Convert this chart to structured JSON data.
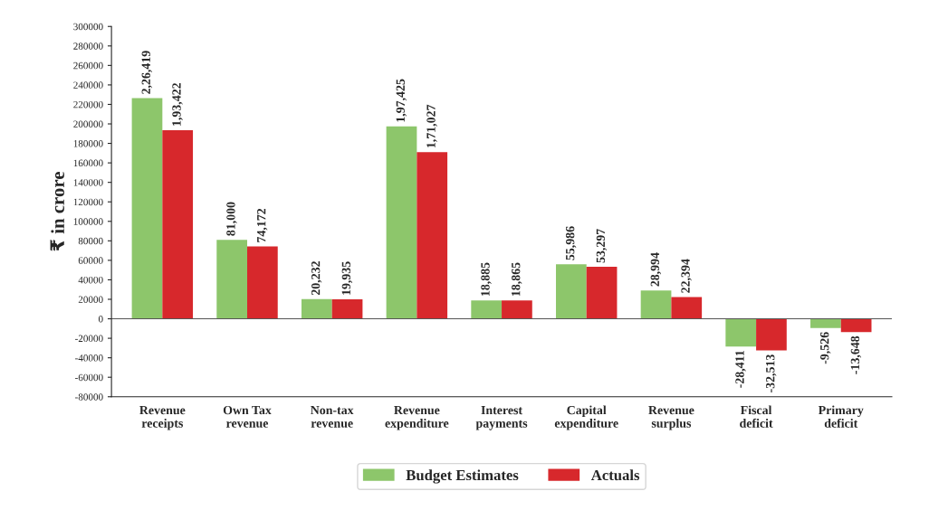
{
  "chart_data": {
    "type": "bar",
    "ylabel": "₹ in crore",
    "categories": [
      "Revenue\nreceipts",
      "Own Tax\nrevenue",
      "Non-tax\nrevenue",
      "Revenue\nexpenditure",
      "Interest\npayments",
      "Capital\nexpenditure",
      "Revenue\nsurplus",
      "Fiscal\ndeficit",
      "Primary\ndeficit"
    ],
    "series": [
      {
        "name": "Budget Estimates",
        "color": "#8dc66b",
        "values": [
          226419,
          81000,
          20232,
          197425,
          18885,
          55986,
          28994,
          -28411,
          -9526
        ],
        "value_labels": [
          "2,26,419",
          "81,000",
          "20,232",
          "1,97,425",
          "18,885",
          "55,986",
          "28,994",
          "-28,411",
          "-9,526"
        ]
      },
      {
        "name": "Actuals",
        "color": "#d7282c",
        "values": [
          193422,
          74172,
          19935,
          171027,
          18865,
          53297,
          22394,
          -32513,
          -13648
        ],
        "value_labels": [
          "1,93,422",
          "74,172",
          "19,935",
          "1,71,027",
          "18,865",
          "53,297",
          "22,394",
          "-32,513",
          "-13,648"
        ]
      }
    ],
    "ylim": [
      -80000,
      300000
    ],
    "yticks": [
      -80000,
      -60000,
      -40000,
      -20000,
      0,
      20000,
      40000,
      60000,
      80000,
      100000,
      120000,
      140000,
      160000,
      180000,
      200000,
      220000,
      240000,
      260000,
      280000,
      300000
    ],
    "ref_lines": [
      {
        "axis": "y",
        "value": 0,
        "color": "#555555"
      }
    ],
    "grid": false,
    "legend": "bottom"
  }
}
